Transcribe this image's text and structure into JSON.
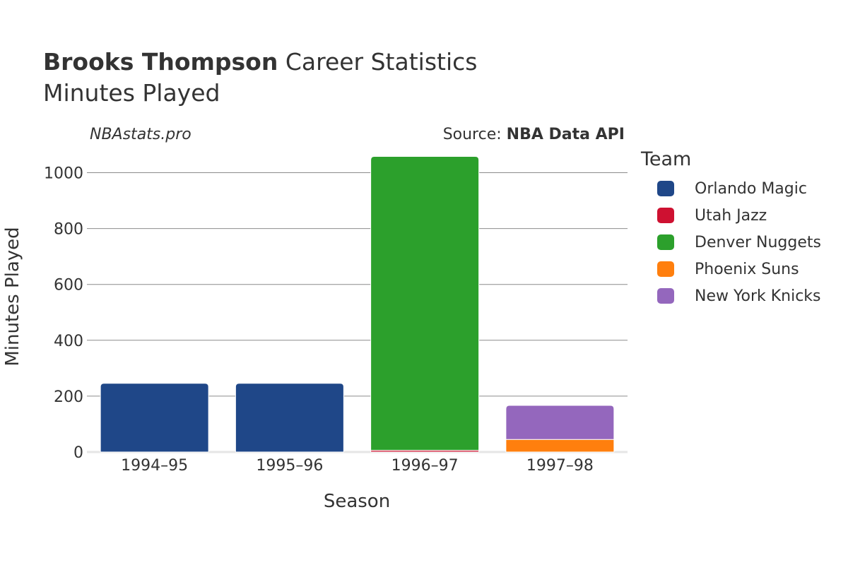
{
  "header": {
    "player_name": "Brooks Thompson",
    "title_rest": " Career Statistics",
    "subtitle": "Minutes Played",
    "brand": "NBAstats.pro",
    "source_prefix": "Source: ",
    "source_name": "NBA Data API"
  },
  "legend": {
    "title": "Team",
    "items": [
      {
        "label": "Orlando Magic",
        "color": "#1f4788"
      },
      {
        "label": "Utah Jazz",
        "color": "#ce1131"
      },
      {
        "label": "Denver Nuggets",
        "color": "#2ca02c"
      },
      {
        "label": "Phoenix Suns",
        "color": "#ff7f0e"
      },
      {
        "label": "New York Knicks",
        "color": "#9467bd"
      }
    ]
  },
  "chart_data": {
    "type": "bar",
    "stacked": true,
    "categories": [
      "1994–95",
      "1995–96",
      "1996–97",
      "1997–98"
    ],
    "series": [
      {
        "name": "Orlando Magic",
        "color": "#1f4788",
        "values": [
          246,
          246,
          0,
          0
        ]
      },
      {
        "name": "Utah Jazz",
        "color": "#ce1131",
        "values": [
          0,
          0,
          6,
          0
        ]
      },
      {
        "name": "Denver Nuggets",
        "color": "#2ca02c",
        "values": [
          0,
          0,
          1052,
          0
        ]
      },
      {
        "name": "Phoenix Suns",
        "color": "#ff7f0e",
        "values": [
          0,
          0,
          0,
          45
        ]
      },
      {
        "name": "New York Knicks",
        "color": "#9467bd",
        "values": [
          0,
          0,
          0,
          122
        ]
      }
    ],
    "xlabel": "Season",
    "ylabel": "Minutes Played",
    "ylim": [
      0,
      1100
    ],
    "yticks": [
      0,
      200,
      400,
      600,
      800,
      1000
    ],
    "grid": true,
    "legend_position": "right"
  }
}
